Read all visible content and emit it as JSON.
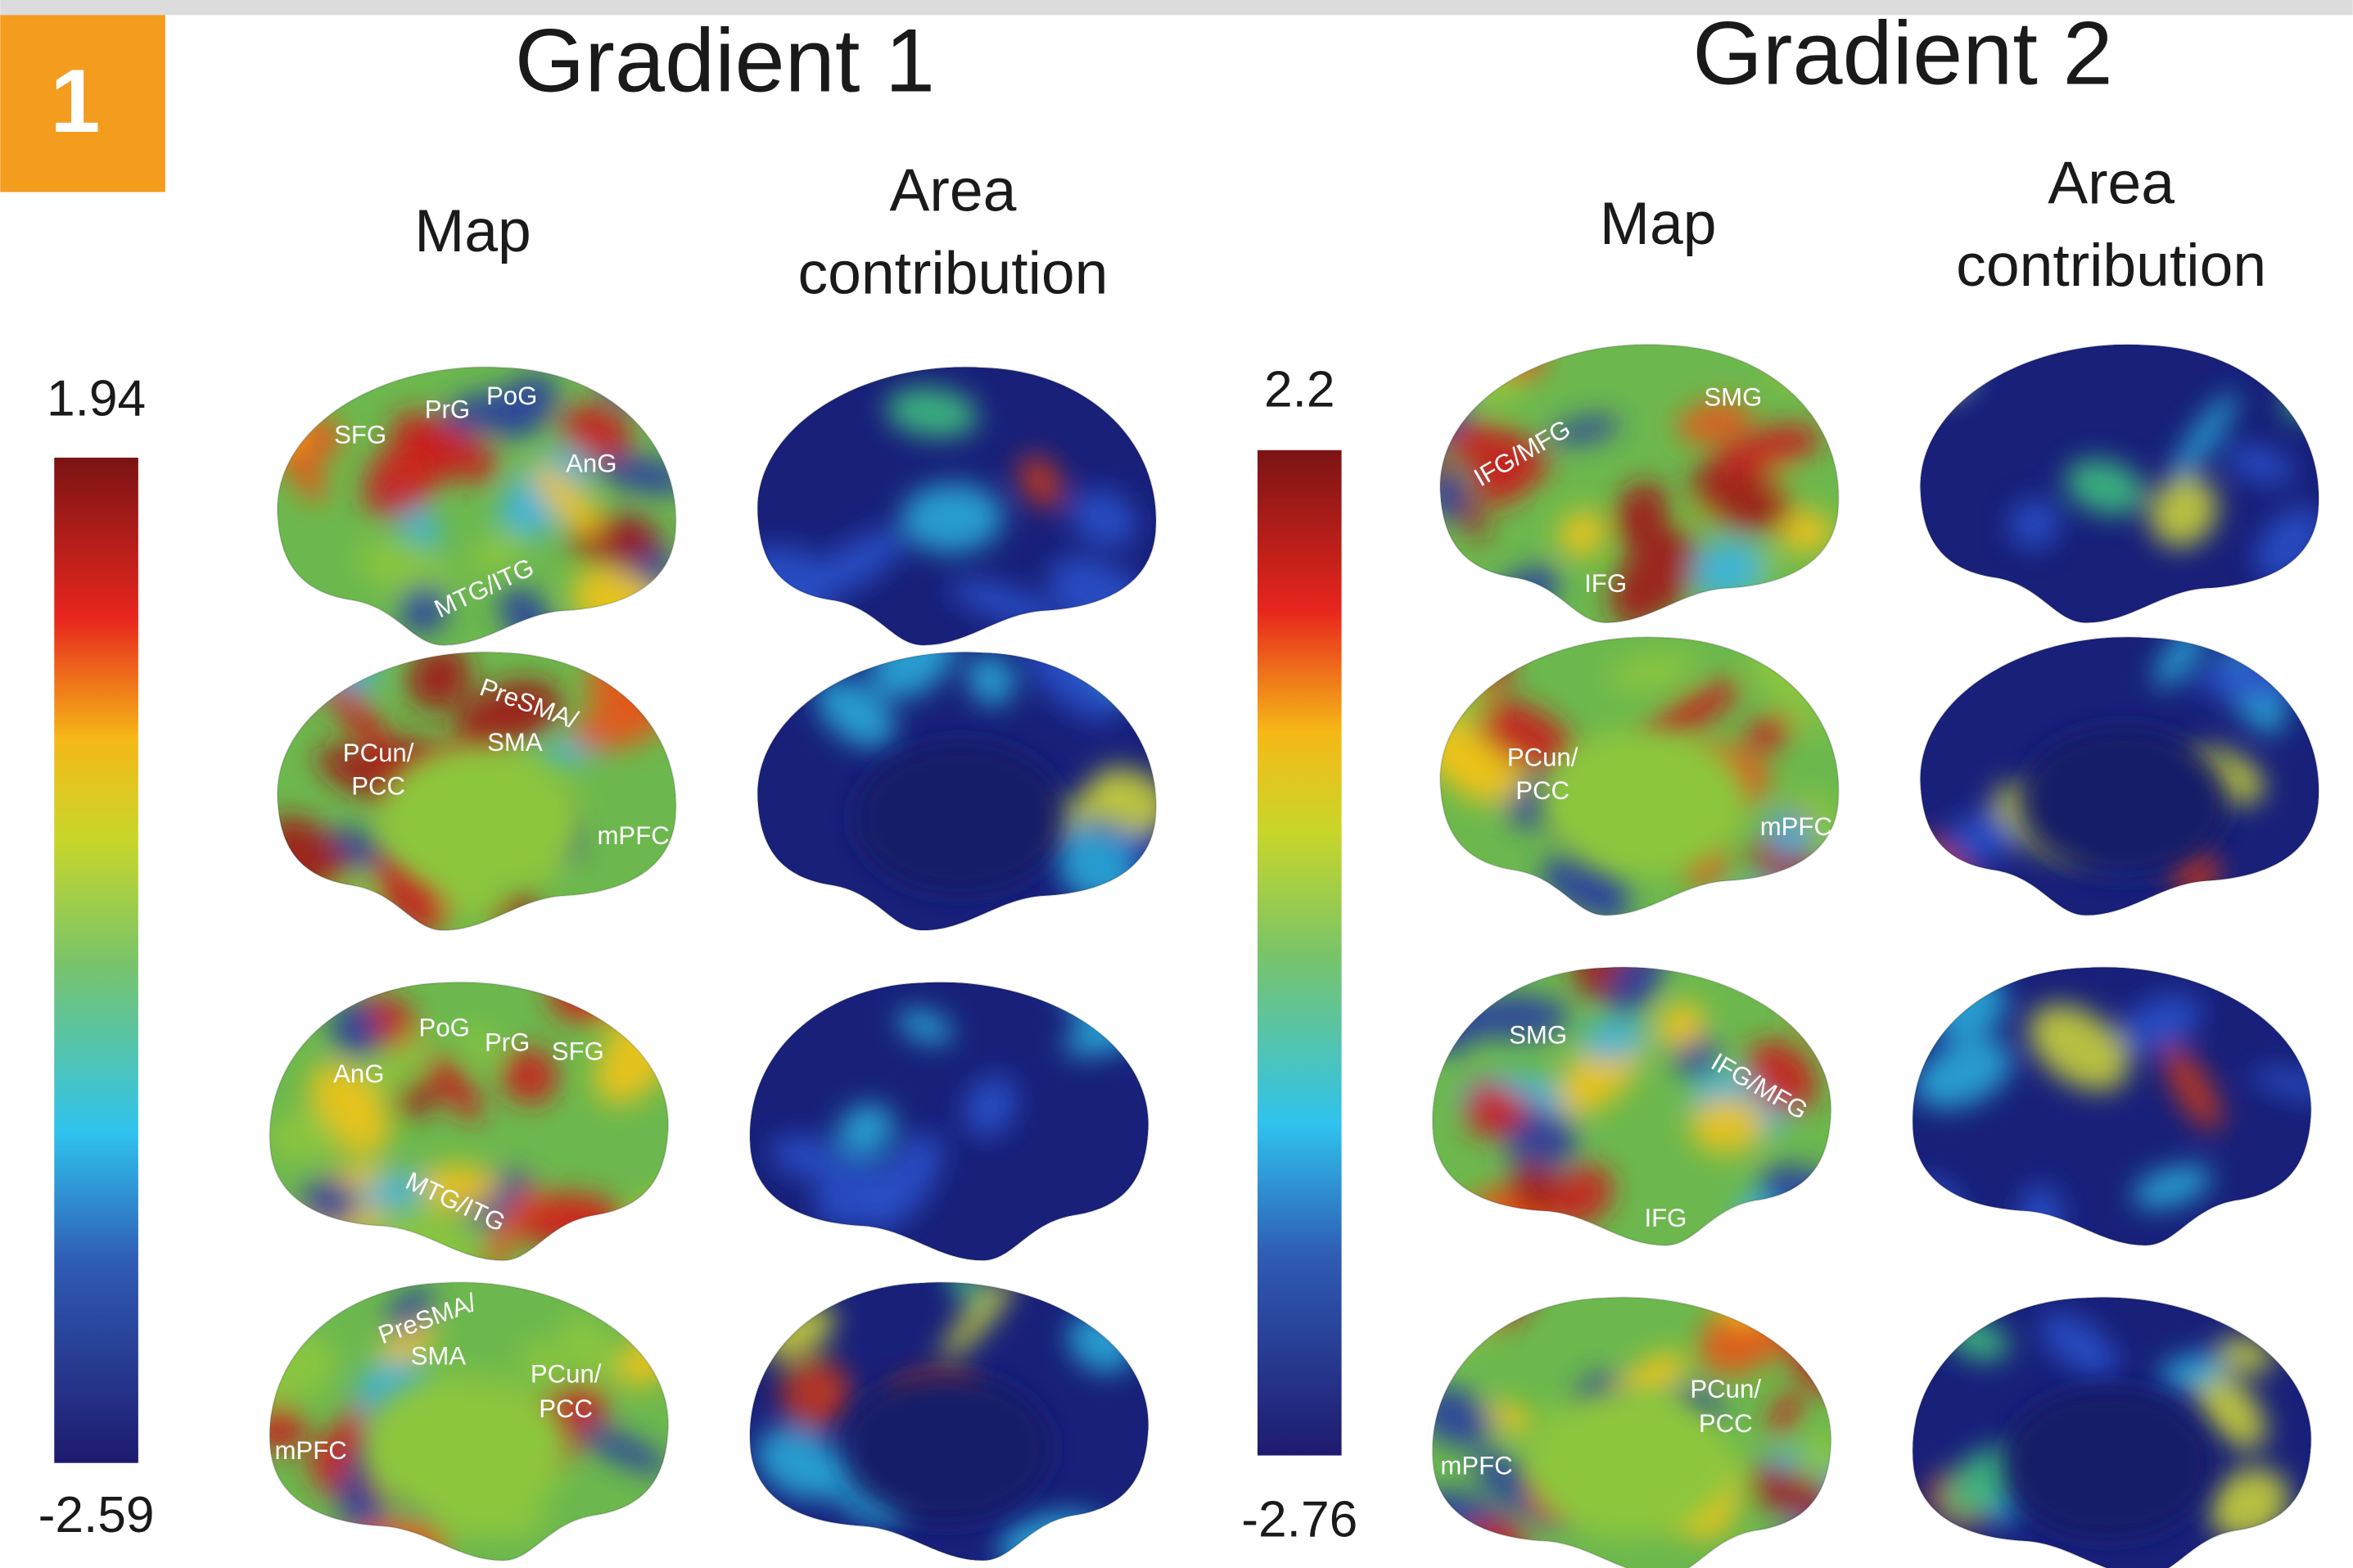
{
  "badge": "1",
  "panels": [
    {
      "title": "Gradient 1",
      "map_header": "Map",
      "area_header": [
        "Area",
        "contribution"
      ],
      "colorbar": {
        "max": 1.94,
        "min": -2.59
      },
      "rows": [
        {
          "labels": [
            "SFG",
            "PrG",
            "PoG",
            "AnG",
            "MTG/ITG"
          ]
        },
        {
          "labels": [
            "PreSMA/",
            "SMA",
            "PCun/",
            "PCC",
            "mPFC"
          ]
        },
        {
          "labels": [
            "PoG",
            "PrG",
            "SFG",
            "AnG",
            "MTG/ITG"
          ]
        },
        {
          "labels": [
            "PreSMA/",
            "SMA",
            "PCun/",
            "PCC",
            "mPFC"
          ]
        }
      ]
    },
    {
      "title": "Gradient 2",
      "map_header": "Map",
      "area_header": [
        "Area",
        "contribution"
      ],
      "colorbar": {
        "max": 2.2,
        "min": -2.76
      },
      "rows": [
        {
          "labels": [
            "IFG/MFG",
            "SMG",
            "IFG"
          ]
        },
        {
          "labels": [
            "PCun/",
            "PCC",
            "mPFC"
          ]
        },
        {
          "labels": [
            "SMG",
            "IFG/MFG",
            "IFG"
          ]
        },
        {
          "labels": [
            "PCun/",
            "PCC",
            "mPFC"
          ]
        }
      ]
    }
  ]
}
